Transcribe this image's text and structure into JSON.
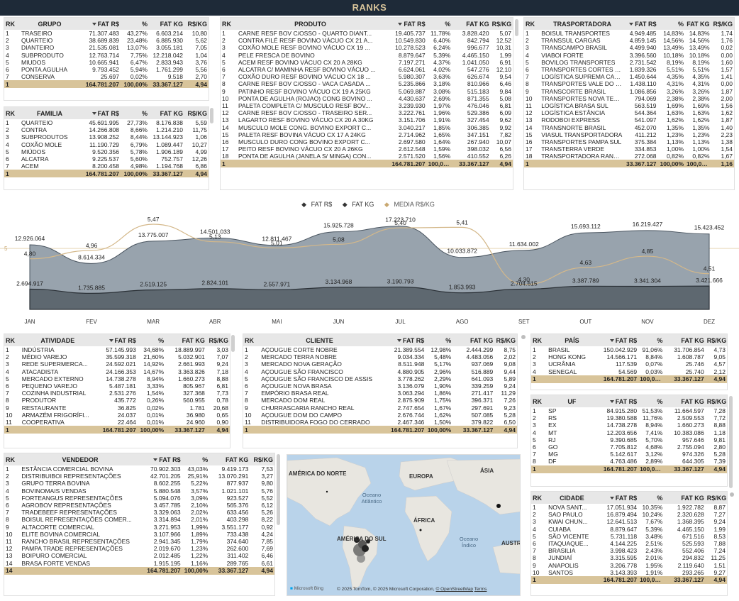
{
  "title": "RANKS",
  "grupo": {
    "headers": [
      "RK",
      "GRUPO",
      "FAT R$",
      "%",
      "FAT KG",
      "R$/KG"
    ],
    "rows": [
      [
        "1",
        "TRASEIRO",
        "71.307.483",
        "43,27%",
        "6.603.214",
        "10,80"
      ],
      [
        "2",
        "QUARTEIO",
        "38.689.839",
        "23,48%",
        "6.885.930",
        "5,62"
      ],
      [
        "3",
        "DIANTEIRO",
        "21.535.081",
        "13,07%",
        "3.055.181",
        "7,05"
      ],
      [
        "4",
        "SUBPRODUTO",
        "12.763.714",
        "7,75%",
        "12.218.042",
        "1,04"
      ],
      [
        "5",
        "MIUDOS",
        "10.665.941",
        "6,47%",
        "2.833.943",
        "3,76"
      ],
      [
        "6",
        "PONTA AGULHA",
        "9.793.452",
        "5,94%",
        "1.761.299",
        "5,56"
      ],
      [
        "7",
        "CONSERVA",
        "25.697",
        "0,02%",
        "9.518",
        "2,70"
      ]
    ],
    "total": [
      "1",
      "",
      "164.781.207",
      "100,00%",
      "33.367.127",
      "4,94"
    ]
  },
  "familia": {
    "headers": [
      "RK",
      "FAMILIA",
      "FAT R$",
      "%",
      "FAT KG",
      "R$/KG"
    ],
    "rows": [
      [
        "1",
        "QUARTEIO",
        "45.691.995",
        "27,73%",
        "8.176.838",
        "5,59"
      ],
      [
        "2",
        "CONTRA",
        "14.266.808",
        "8,66%",
        "1.214.210",
        "11,75"
      ],
      [
        "3",
        "SUBPRODUTOS",
        "13.908.252",
        "8,44%",
        "13.144.923",
        "1,06"
      ],
      [
        "4",
        "COXÃO MOLE",
        "11.190.729",
        "6,79%",
        "1.089.447",
        "10,27"
      ],
      [
        "5",
        "MIÚDOS",
        "9.520.356",
        "5,78%",
        "1.906.189",
        "4,99"
      ],
      [
        "6",
        "ALCATRA",
        "9.225.537",
        "5,60%",
        "752.757",
        "12,26"
      ],
      [
        "7",
        "ACEM",
        "8.200.458",
        "4,98%",
        "1.194.768",
        "6,86"
      ]
    ],
    "total": [
      "1",
      "",
      "164.781.207",
      "100,00%",
      "33.367.127",
      "4,94"
    ]
  },
  "produto": {
    "headers": [
      "RK",
      "PRODUTO",
      "FAT R$",
      "%",
      "FAT KG",
      "R$/KG"
    ],
    "rows": [
      [
        "1",
        "CARNE RESF BOV C/OSSO - QUARTO DIANT...",
        "19.405.737",
        "11,78%",
        "3.828.420",
        "5,07"
      ],
      [
        "2",
        "CONTRA FILÉ RESF BOVINO VÁCUO CX 21 A...",
        "10.549.830",
        "6,40%",
        "842.794",
        "12,52"
      ],
      [
        "3",
        "COXÃO MOLE RESF BOVINO VÁCUO CX 19 ...",
        "10.278.523",
        "6,24%",
        "996.677",
        "10,31"
      ],
      [
        "4",
        "PELE FRESCA DE BOVINO",
        "8.879.647",
        "5,39%",
        "4.465.150",
        "1,99"
      ],
      [
        "5",
        "ACEM RESF BOVINO VÁCUO CX 20 A 28KG",
        "7.197.271",
        "4,37%",
        "1.041.050",
        "6,91"
      ],
      [
        "6",
        "ALCATRA C/ MAMINHA RESF BOVINO VÁCUO ...",
        "6.624.061",
        "4,02%",
        "547.276",
        "12,10"
      ],
      [
        "7",
        "COXÃO DURO RESF BOVINO VÁCUO CX 18 ...",
        "5.980.307",
        "3,63%",
        "626.674",
        "9,54"
      ],
      [
        "8",
        "CARNE RESF BOV C/OSSO - VACA CASADA ...",
        "5.235.866",
        "3,18%",
        "810.966",
        "6,46"
      ],
      [
        "9",
        "PATINHO RESF BOVINO VÁCUO CX 19 A 25KG",
        "5.069.887",
        "3,08%",
        "515.183",
        "9,84"
      ],
      [
        "10",
        "PONTA DE AGULHA (ROJAO) CONG BOVINO ...",
        "4.430.637",
        "2,69%",
        "871.355",
        "5,08"
      ],
      [
        "11",
        "PALETA COMPLETA C/ MUSCULO RESF BOV...",
        "3.239.930",
        "1,97%",
        "476.046",
        "6,81"
      ],
      [
        "12",
        "CARNE RESF BOV C/OSSO - TRASEIRO SER...",
        "3.222.761",
        "1,96%",
        "529.386",
        "6,09"
      ],
      [
        "13",
        "LAGARTO RESF BOVINO VÁCUO CX 20 A 30KG",
        "3.151.706",
        "1,91%",
        "327.454",
        "9,62"
      ],
      [
        "14",
        "MUSCULO MOLE CONG. BOVINO EXPORT C...",
        "3.040.217",
        "1,85%",
        "306.385",
        "9,92"
      ],
      [
        "15",
        "PALETA RESF BOVINA VÁCUO CX 17 A 24KG",
        "2.714.962",
        "1,65%",
        "347.151",
        "7,82"
      ],
      [
        "16",
        "MUSCULO DURO CONG BOVINO EXPORT C...",
        "2.697.580",
        "1,64%",
        "267.940",
        "10,07"
      ],
      [
        "17",
        "PEITO RESF BOVINO VÁCUO CX 20 A 26KG",
        "2.612.548",
        "1,59%",
        "398.032",
        "6,56"
      ],
      [
        "18",
        "PONTA DE AGULHA (JANELA S/ MINGA) CON...",
        "2.571.520",
        "1,56%",
        "410.552",
        "6,26"
      ]
    ],
    "total": [
      "1",
      "",
      "164.781.207",
      "100,00%",
      "33.367.127",
      "4,94"
    ]
  },
  "transportadora": {
    "headers": [
      "RK",
      "TRASPORTADORA",
      "FAT R$",
      "%",
      "FAT KG",
      "R$/KG"
    ],
    "rows": [
      [
        "1",
        "BOISUL TRANSPORTES",
        "4.949.485",
        "14,83%",
        "14,83%",
        "1,74"
      ],
      [
        "2",
        "TRANSSUL CARGAS",
        "4.859.145",
        "14,56%",
        "14,56%",
        "1,76"
      ],
      [
        "3",
        "TRANSCAMPO BRASIL",
        "4.499.940",
        "13,49%",
        "13,49%",
        "0,02"
      ],
      [
        "4",
        "VIABOI FORTE",
        "3.396.560",
        "10,18%",
        "10,18%",
        "0,00"
      ],
      [
        "5",
        "BOVILOG TRANSPORTES",
        "2.731.542",
        "8,19%",
        "8,19%",
        "1,60"
      ],
      [
        "6",
        "TRANSPORTES CORTES N...",
        "1.839.326",
        "5,51%",
        "5,51%",
        "1,57"
      ],
      [
        "7",
        "LOGÍSTICA SUPREMA CAR...",
        "1.450.644",
        "4,35%",
        "4,35%",
        "1,41"
      ],
      [
        "8",
        "TRANSPORTES VALE DO C...",
        "1.438.110",
        "4,31%",
        "4,31%",
        "0,00"
      ],
      [
        "9",
        "TRANSCORTE BRASIL",
        "1.086.856",
        "3,26%",
        "3,26%",
        "1,87"
      ],
      [
        "10",
        "TRANSPORTES NOVA TERRA",
        "794.069",
        "2,38%",
        "2,38%",
        "2,00"
      ],
      [
        "11",
        "LOGÍSTICA BRASA SUL",
        "563.519",
        "1,69%",
        "1,69%",
        "1,56"
      ],
      [
        "12",
        "LOGÍSTICA ESTÂNCIA",
        "544.364",
        "1,63%",
        "1,63%",
        "1,62"
      ],
      [
        "13",
        "RODOBOI EXPRESS",
        "541.097",
        "1,62%",
        "1,62%",
        "1,87"
      ],
      [
        "14",
        "TRANSNORTE BRASIL",
        "452.070",
        "1,35%",
        "1,35%",
        "1,40"
      ],
      [
        "15",
        "VIASUL TRANSPORTADORA",
        "411.212",
        "1,23%",
        "1,23%",
        "2,23"
      ],
      [
        "16",
        "TRANSPORTES PAMPA SUL",
        "375.384",
        "1,13%",
        "1,13%",
        "1,38"
      ],
      [
        "17",
        "TRANSTERRA VERDE",
        "334.853",
        "1,00%",
        "1,00%",
        "1,54"
      ],
      [
        "18",
        "TRANSPORTADORA RANCH...",
        "272.068",
        "0,82%",
        "0,82%",
        "1,67"
      ]
    ],
    "total": [
      "1",
      "",
      "33.367.127",
      "100,00%",
      "100,00%",
      "1,16"
    ]
  },
  "chart_legend": {
    "s1": "FAT R$",
    "s2": "FAT KG",
    "s3": "MEDIA R$/KG"
  },
  "chart_data": {
    "type": "area",
    "categories": [
      "JAN",
      "FEV",
      "MAR",
      "ABR",
      "MAI",
      "JUN",
      "JUL",
      "AGO",
      "SET",
      "OUT",
      "NOV",
      "DEZ"
    ],
    "series": [
      {
        "name": "FAT R$",
        "values": [
          12926064,
          8614334,
          13775007,
          14501033,
          12811467,
          15925728,
          17223710,
          10033872,
          11634002,
          15693112,
          16219427,
          15423452
        ],
        "labels": [
          "12.926.064",
          "8.614.334",
          "13.775.007",
          "14.501.033",
          "12.811.467",
          "15.925.728",
          "17.223.710",
          "10.033.872",
          "11.634.002",
          "15.693.112",
          "16.219.427",
          "15.423.452"
        ]
      },
      {
        "name": "FAT KG",
        "values": [
          2694917,
          1735885,
          2519125,
          2824101,
          2557971,
          3134968,
          3190793,
          1853993,
          2704615,
          3387789,
          3341304,
          3421666
        ],
        "labels": [
          "2.694.917",
          "1.735.885",
          "2.519.125",
          "2.824.101",
          "2.557.971",
          "3.134.968",
          "3.190.793",
          "1.853.993",
          "2.704.615",
          "3.387.789",
          "3.341.304",
          "3.421.666"
        ]
      },
      {
        "name": "MEDIA R$/KG",
        "values": [
          4.8,
          4.96,
          5.47,
          5.13,
          5.01,
          5.08,
          5.4,
          5.41,
          4.3,
          4.63,
          4.85,
          4.51
        ],
        "labels": [
          "4,80",
          "4,96",
          "5,47",
          "5,13",
          "5,01",
          "5,08",
          "5,40",
          "5,41",
          "4,30",
          "4,63",
          "4,85",
          "4,51"
        ]
      }
    ],
    "ref_line_label": "5"
  },
  "atividade": {
    "headers": [
      "RK",
      "ATIVIDADE",
      "FAT R$",
      "%",
      "FAT KG",
      "R$/KG"
    ],
    "rows": [
      [
        "1",
        "INDÚSTRIA",
        "57.145.993",
        "34,68%",
        "18.889.997",
        "3,03"
      ],
      [
        "2",
        "MÉDIO VAREJO",
        "35.599.318",
        "21,60%",
        "5.032.901",
        "7,07"
      ],
      [
        "3",
        "REDE SUPERMERCA...",
        "24.592.021",
        "14,92%",
        "2.661.993",
        "9,24"
      ],
      [
        "4",
        "ATACADISTA",
        "24.166.353",
        "14,67%",
        "3.363.826",
        "7,18"
      ],
      [
        "5",
        "MERCADO EXTERNO",
        "14.738.278",
        "8,94%",
        "1.660.273",
        "8,88"
      ],
      [
        "6",
        "PEQUENO VAREJO",
        "5.487.181",
        "3,33%",
        "805.967",
        "6,81"
      ],
      [
        "7",
        "COZINHA INDUSTRIAL",
        "2.531.276",
        "1,54%",
        "327.368",
        "7,73"
      ],
      [
        "8",
        "PRODUTOR",
        "435.772",
        "0,26%",
        "560.955",
        "0,78"
      ],
      [
        "9",
        "RESTAURANTE",
        "36.825",
        "0,02%",
        "1.781",
        "20,68"
      ],
      [
        "10",
        "ARMAZÉM FRIGORÍFI...",
        "24.037",
        "0,01%",
        "36.980",
        "0,65"
      ],
      [
        "11",
        "COOPERATIVA",
        "22.464",
        "0,01%",
        "24.960",
        "0,90"
      ]
    ],
    "total": [
      "1",
      "",
      "164.781.207",
      "100,00%",
      "33.367.127",
      "4,94"
    ]
  },
  "cliente": {
    "headers": [
      "RK",
      "CLIENTE",
      "FAT R$",
      "%",
      "FAT KG",
      "R$/KG"
    ],
    "rows": [
      [
        "1",
        "AÇOUGUE CORTE NOBRE",
        "21.389.554",
        "12,98%",
        "2.444.299",
        "8,75"
      ],
      [
        "2",
        "MERCADO TERRA NOBRE",
        "9.034.334",
        "5,48%",
        "4.483.056",
        "2,02"
      ],
      [
        "3",
        "MERCADO NOVA GERAÇÃO",
        "8.511.948",
        "5,17%",
        "937.069",
        "9,08"
      ],
      [
        "4",
        "AÇOUGUE SÃO FRANCISCO",
        "4.880.905",
        "2,96%",
        "516.889",
        "9,44"
      ],
      [
        "5",
        "AÇOUGUE SÃO FRANCISCO DE ASSIS",
        "3.778.262",
        "2,29%",
        "641.093",
        "5,89"
      ],
      [
        "6",
        "AÇOUGUE NOVA BRASA",
        "3.136.079",
        "1,90%",
        "339.259",
        "9,24"
      ],
      [
        "7",
        "EMPÓRIO BRASA REAL",
        "3.063.294",
        "1,86%",
        "271.417",
        "11,29"
      ],
      [
        "8",
        "MERCADO DOM REAL",
        "2.875.909",
        "1,75%",
        "396.371",
        "7,26"
      ],
      [
        "9",
        "CHURRASCARIA RANCHO REAL",
        "2.747.654",
        "1,67%",
        "297.691",
        "9,23"
      ],
      [
        "10",
        "AÇOUGUE DOM DO CAMPO",
        "2.676.744",
        "1,62%",
        "507.085",
        "5,28"
      ],
      [
        "11",
        "DISTRIBUIDORA FOGO DO CERRADO",
        "2.467.346",
        "1,50%",
        "379.822",
        "6,50"
      ]
    ],
    "total": [
      "1",
      "",
      "164.781.207",
      "100,00%",
      "33.367.127",
      "4,94"
    ]
  },
  "pais": {
    "headers": [
      "RK",
      "PAÍS",
      "FAT R$",
      "%",
      "FAT KG",
      "R$/KG"
    ],
    "rows": [
      [
        "1",
        "BRASIL",
        "150.042.929",
        "91,06%",
        "31.706.854",
        "4,73"
      ],
      [
        "2",
        "HONG KONG",
        "14.566.171",
        "8,84%",
        "1.608.787",
        "9,05"
      ],
      [
        "3",
        "UCRÂNIA",
        "117.539",
        "0,07%",
        "25.746",
        "4,57"
      ],
      [
        "4",
        "SENEGAL",
        "54.569",
        "0,03%",
        "25.740",
        "2,12"
      ]
    ],
    "total": [
      "1",
      "",
      "164.781.207",
      "100,00%",
      "33.367.127",
      "4,94"
    ]
  },
  "uf": {
    "headers": [
      "RK",
      "UF",
      "FAT R$",
      "%",
      "FAT KG",
      "R$/KG"
    ],
    "rows": [
      [
        "1",
        "SP",
        "84.915.280",
        "51,53%",
        "11.664.597",
        "7,28"
      ],
      [
        "2",
        "RS",
        "19.380.588",
        "11,76%",
        "2.509.553",
        "7,72"
      ],
      [
        "3",
        "EX",
        "14.738.278",
        "8,94%",
        "1.660.273",
        "8,88"
      ],
      [
        "4",
        "MT",
        "12.203.656",
        "7,41%",
        "10.383.086",
        "1,18"
      ],
      [
        "5",
        "RJ",
        "9.390.685",
        "5,70%",
        "957.646",
        "9,81"
      ],
      [
        "6",
        "GO",
        "7.705.812",
        "4,68%",
        "2.755.094",
        "2,80"
      ],
      [
        "7",
        "MG",
        "5.142.617",
        "3,12%",
        "974.326",
        "5,28"
      ],
      [
        "8",
        "DF",
        "4.763.486",
        "2,89%",
        "644.305",
        "7,39"
      ]
    ],
    "total": [
      "1",
      "",
      "164.781.207",
      "100,00%",
      "33.367.127",
      "4,94"
    ]
  },
  "cidade": {
    "headers": [
      "RK",
      "CIDADE",
      "FAT R$",
      "%",
      "FAT KG",
      "R$/KG"
    ],
    "rows": [
      [
        "1",
        "NOVA SANT...",
        "17.051.934",
        "10,35%",
        "1.922.782",
        "8,87"
      ],
      [
        "2",
        "SAO PAULO",
        "16.879.494",
        "10,24%",
        "2.320.628",
        "7,27"
      ],
      [
        "3",
        "KWAI CHUN...",
        "12.641.513",
        "7,67%",
        "1.368.395",
        "9,24"
      ],
      [
        "4",
        "CUIABA",
        "8.879.647",
        "5,39%",
        "4.465.150",
        "1,99"
      ],
      [
        "5",
        "SÃO VICENTE",
        "5.731.118",
        "3,48%",
        "671.516",
        "8,53"
      ],
      [
        "6",
        "ITAQUAQUE...",
        "4.144.225",
        "2,51%",
        "525.593",
        "7,88"
      ],
      [
        "7",
        "BRASILIA",
        "3.998.423",
        "2,43%",
        "552.406",
        "7,24"
      ],
      [
        "8",
        "JUNDIAÍ",
        "3.315.595",
        "2,01%",
        "294.832",
        "11,25"
      ],
      [
        "9",
        "ANAPOLIS",
        "3.206.778",
        "1,95%",
        "2.119.640",
        "1,51"
      ],
      [
        "10",
        "SANTOS",
        "3.143.393",
        "1,91%",
        "293.265",
        "9,27"
      ]
    ],
    "total": [
      "1",
      "",
      "164.781.207",
      "100,00%",
      "33.367.127",
      "4,94"
    ]
  },
  "vendedor": {
    "headers": [
      "RK",
      "VENDEDOR",
      "FAT R$",
      "%",
      "FAT KG",
      "R$/KG"
    ],
    "rows": [
      [
        "1",
        "ESTÂNCIA COMERCIAL BOVINA",
        "70.902.303",
        "43,03%",
        "9.419.173",
        "7,53"
      ],
      [
        "2",
        "DISTRIBUIBOI REPRESENTAÇÕES",
        "42.701.205",
        "25,91%",
        "13.070.291",
        "3,27"
      ],
      [
        "3",
        "GRUPO TERRA BOVINA",
        "8.602.255",
        "5,22%",
        "877.937",
        "9,80"
      ],
      [
        "4",
        "BOVINOMAIS VENDAS",
        "5.880.548",
        "3,57%",
        "1.021.101",
        "5,76"
      ],
      [
        "5",
        "FORTEANGUS REPRESENTAÇÕES",
        "5.094.076",
        "3,09%",
        "923.527",
        "5,52"
      ],
      [
        "6",
        "AGROBOV REPRESENTAÇÕES",
        "3.457.785",
        "2,10%",
        "565.376",
        "6,12"
      ],
      [
        "7",
        "TRADEBEEF REPRESENTAÇÕES",
        "3.329.063",
        "2,02%",
        "633.456",
        "5,26"
      ],
      [
        "8",
        "BOISUL REPRESENTAÇÕES COMER...",
        "3.314.894",
        "2,01%",
        "403.298",
        "8,22"
      ],
      [
        "9",
        "ALTACORTE COMERCIAL",
        "3.271.953",
        "1,99%",
        "3.551.177",
        "0,92"
      ],
      [
        "10",
        "ELITE BOVINA COMERCIAL",
        "3.107.966",
        "1,89%",
        "733.438",
        "4,24"
      ],
      [
        "11",
        "RANCHO BRASIL REPRESENTAÇÕES",
        "2.941.345",
        "1,79%",
        "374.640",
        "7,85"
      ],
      [
        "12",
        "PAMPA TRADE REPRESENTAÇÕES",
        "2.019.670",
        "1,23%",
        "262.600",
        "7,69"
      ],
      [
        "13",
        "BOIPURO COMERCIAL",
        "2.012.485",
        "1,22%",
        "311.402",
        "6,46"
      ],
      [
        "14",
        "BRASA FORTE VENDAS",
        "1.915.195",
        "1,16%",
        "289.765",
        "6,61"
      ]
    ],
    "total": [
      "14",
      "",
      "164.781.207",
      "100,00%",
      "33.367.127",
      "4,94"
    ]
  },
  "map": {
    "labels": {
      "na": "AMÉRICA DO NORTE",
      "eu": "EUROPA",
      "as": "ÁSIA",
      "af": "ÁFRICA",
      "sa": "AMÉRICA DO SUL",
      "au": "AUSTR",
      "oa": "Oceano Atlântico",
      "oi": "Oceano Índico"
    },
    "attribution": "© 2025 TomTom, © 2025 Microsoft Corporation,",
    "osm": "© OpenStreetMap",
    "terms": "Terms",
    "bing": "Microsoft Bing"
  }
}
